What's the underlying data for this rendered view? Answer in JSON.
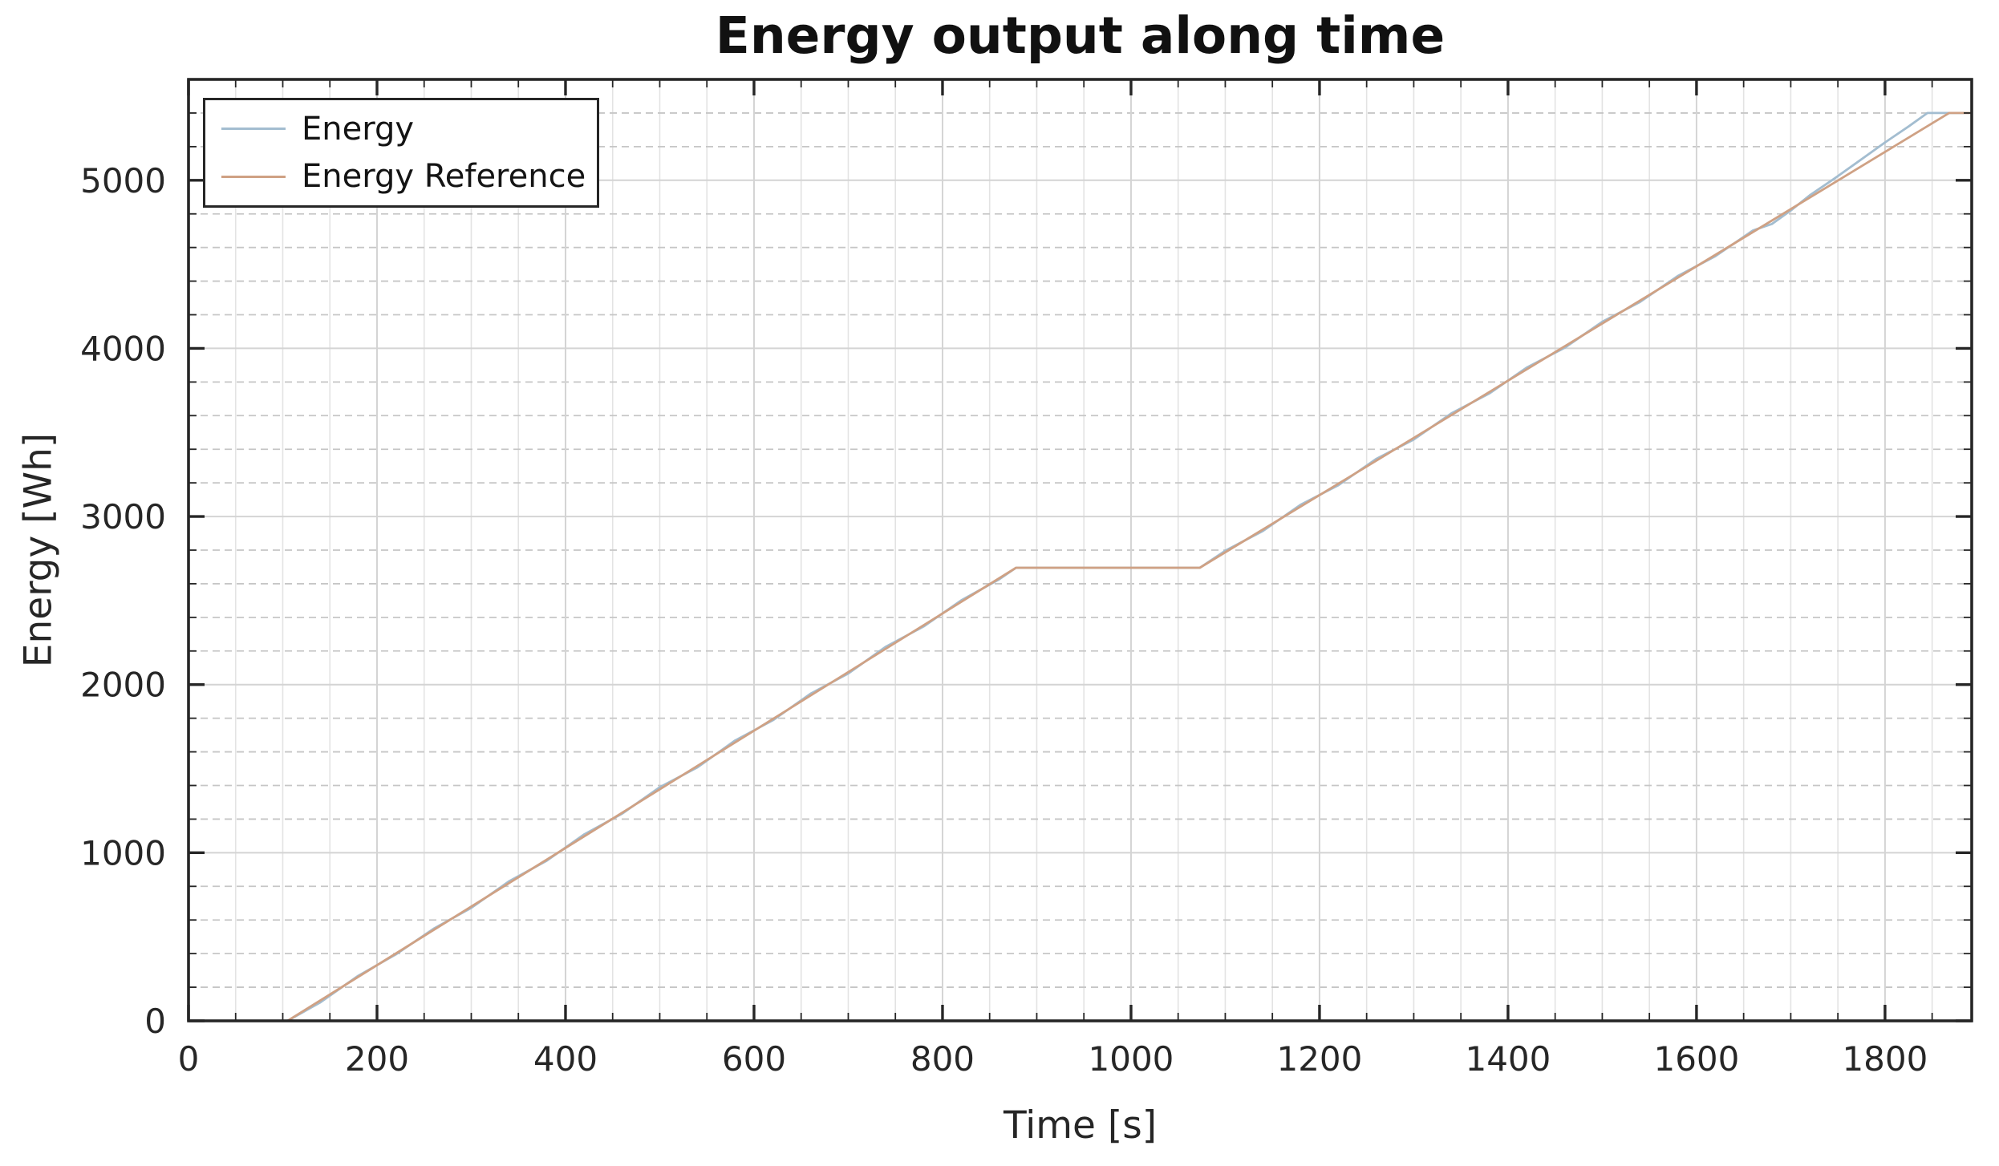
{
  "figure": {
    "background": "#ffffff"
  },
  "chart_data": {
    "type": "line",
    "title": "Energy output along time",
    "xlabel": "Time [s]",
    "ylabel": "Energy [Wh]",
    "xlim": [
      0,
      1892
    ],
    "ylim": [
      0,
      5600
    ],
    "xticks": [
      0,
      200,
      400,
      600,
      800,
      1000,
      1200,
      1400,
      1600,
      1800
    ],
    "yticks": [
      0,
      1000,
      2000,
      3000,
      4000,
      5000
    ],
    "x_minor_step": 50,
    "y_minor_step": 200,
    "grid": {
      "major": true,
      "minor": true
    },
    "legend_position": "top-left",
    "axis_color": "#262626",
    "major_grid_color": "#d4d4d4",
    "minor_grid_color": "#c6c6c6",
    "series": [
      {
        "name": "Energy",
        "color": "#a3bdd0",
        "points": [
          [
            0,
            0
          ],
          [
            105,
            0
          ],
          [
            140,
            110
          ],
          [
            180,
            268
          ],
          [
            220,
            395
          ],
          [
            260,
            548
          ],
          [
            300,
            672
          ],
          [
            340,
            830
          ],
          [
            380,
            952
          ],
          [
            420,
            1110
          ],
          [
            460,
            1232
          ],
          [
            500,
            1390
          ],
          [
            540,
            1508
          ],
          [
            580,
            1668
          ],
          [
            620,
            1788
          ],
          [
            660,
            1946
          ],
          [
            700,
            2066
          ],
          [
            740,
            2226
          ],
          [
            780,
            2346
          ],
          [
            820,
            2502
          ],
          [
            860,
            2626
          ],
          [
            878,
            2695
          ],
          [
            1073,
            2695
          ],
          [
            1100,
            2796
          ],
          [
            1140,
            2914
          ],
          [
            1180,
            3070
          ],
          [
            1220,
            3186
          ],
          [
            1260,
            3342
          ],
          [
            1300,
            3458
          ],
          [
            1340,
            3614
          ],
          [
            1380,
            3731
          ],
          [
            1420,
            3886
          ],
          [
            1460,
            4003
          ],
          [
            1500,
            4158
          ],
          [
            1540,
            4276
          ],
          [
            1580,
            4430
          ],
          [
            1620,
            4548
          ],
          [
            1660,
            4702
          ],
          [
            1680,
            4740
          ],
          [
            1700,
            4820
          ],
          [
            1720,
            4910
          ],
          [
            1745,
            5005
          ],
          [
            1770,
            5105
          ],
          [
            1800,
            5225
          ],
          [
            1825,
            5320
          ],
          [
            1845,
            5400
          ],
          [
            1892,
            5400
          ]
        ]
      },
      {
        "name": "Energy Reference",
        "color": "#cfa184",
        "points": [
          [
            0,
            0
          ],
          [
            105,
            0
          ],
          [
            878,
            2695
          ],
          [
            1073,
            2695
          ],
          [
            1868,
            5400
          ],
          [
            1892,
            5400
          ]
        ]
      }
    ]
  }
}
